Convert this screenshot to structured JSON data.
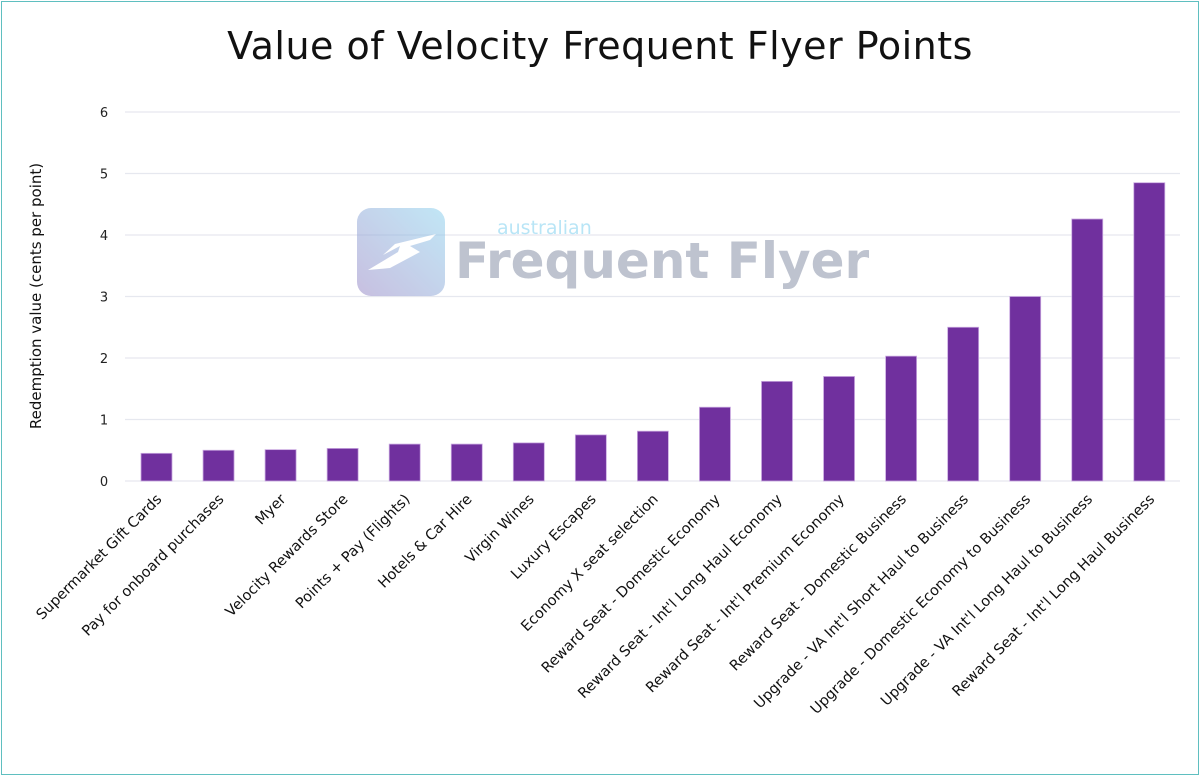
{
  "chart_data": {
    "type": "bar",
    "title": "Value of Velocity Frequent Flyer Points",
    "xlabel": "",
    "ylabel": "Redemption value (cents per point)",
    "ylim": [
      0,
      6
    ],
    "yticks": [
      "0",
      "1",
      "2",
      "3",
      "4",
      "5",
      "6"
    ],
    "grid": true,
    "categories": [
      "Supermarket Gift Cards",
      "Pay for onboard purchases",
      "Myer",
      "Velocity Rewards Store",
      "Points + Pay (Flights)",
      "Hotels & Car Hire",
      "Virgin Wines",
      "Luxury Escapes",
      "Economy X seat selection",
      "Reward Seat - Domestic Economy",
      "Reward Seat - Int'l Long Haul Economy",
      "Reward Seat - Int'l Premium Economy",
      "Reward Seat - Domestic Business",
      "Upgrade - VA Int'l Short Haul to Business",
      "Upgrade - Domestic Economy to Business",
      "Upgrade - VA Int'l Long Haul to Business",
      "Reward Seat - Int'l Long Haul Business"
    ],
    "values": [
      0.45,
      0.5,
      0.51,
      0.53,
      0.6,
      0.6,
      0.62,
      0.75,
      0.81,
      1.2,
      1.62,
      1.7,
      2.03,
      2.5,
      3.0,
      4.26,
      4.85
    ],
    "bar_color": "#70309e"
  },
  "watermark": {
    "small": "australian",
    "large": "Frequent Flyer"
  }
}
